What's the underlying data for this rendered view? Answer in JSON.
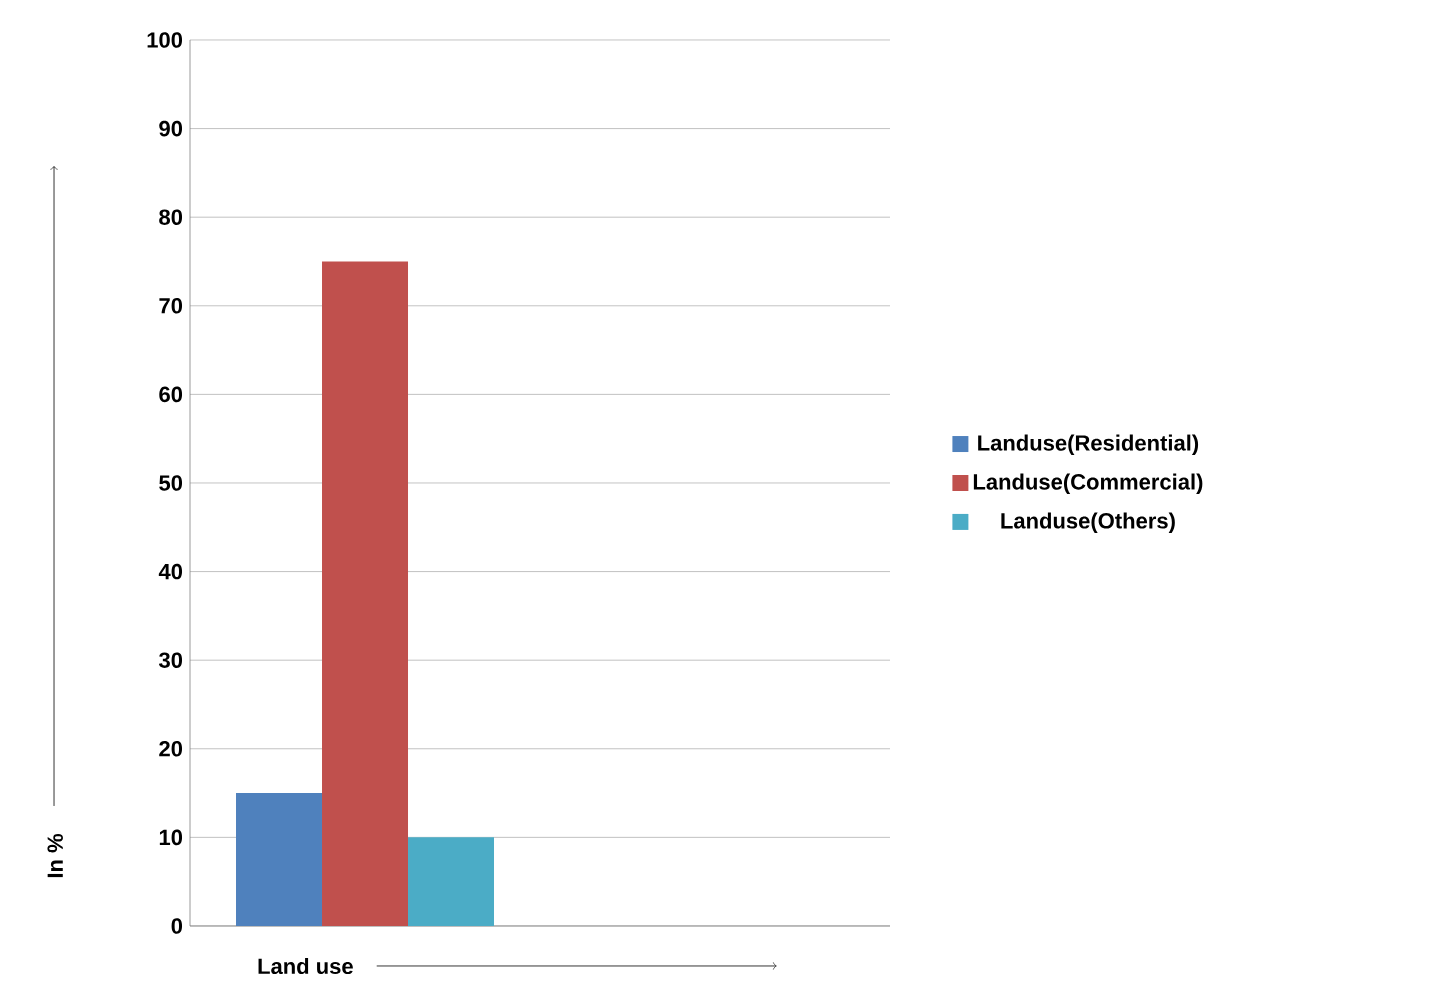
{
  "chart_data": {
    "type": "bar",
    "xlabel": "Land use",
    "ylabel": "In %",
    "categories": [
      null,
      null
    ],
    "series": [
      {
        "name": "Landuse(Residential)",
        "color": "#4f81bd",
        "values": [
          15,
          null
        ]
      },
      {
        "name": "Landuse(Commercial)",
        "color": "#c0504d",
        "values": [
          75,
          null
        ]
      },
      {
        "name": "Landuse(Others)",
        "color": "#4bacc6",
        "values": [
          10,
          null
        ]
      }
    ],
    "ylim": [
      0,
      100
    ],
    "yticks": [
      0,
      10,
      20,
      30,
      40,
      50,
      60,
      70,
      80,
      90,
      100
    ],
    "grid": "y",
    "legend": "right"
  }
}
